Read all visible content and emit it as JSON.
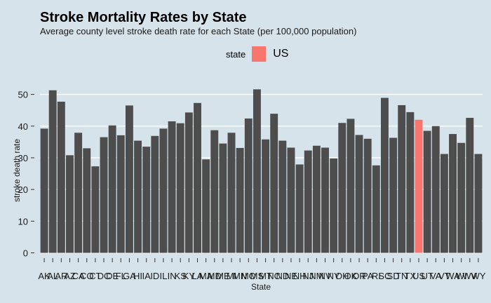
{
  "chart_data": {
    "type": "bar",
    "title": "Stroke Mortality Rates by State",
    "subtitle": "Average county level stroke death rate for each State (per 100,000 population)",
    "xlabel": "State",
    "ylabel": "stroke death rate",
    "ylim": [
      0,
      55
    ],
    "yticks": [
      0,
      10,
      20,
      30,
      40,
      50
    ],
    "legend": {
      "title": "state",
      "label": "US",
      "position": "top"
    },
    "colors": {
      "bar": "#4d4d4d",
      "highlight": "#f8766d",
      "grid": "#ffffff",
      "background": "#d6e3ea"
    },
    "highlight": "US",
    "categories": [
      "AK",
      "AL",
      "AR",
      "AZ",
      "CA",
      "CO",
      "CT",
      "DC",
      "DE",
      "FL",
      "GA",
      "HI",
      "IA",
      "ID",
      "IL",
      "IN",
      "KS",
      "KY",
      "LA",
      "MA",
      "MD",
      "ME",
      "MI",
      "MN",
      "MO",
      "MS",
      "MT",
      "NC",
      "ND",
      "NE",
      "NH",
      "NJ",
      "NM",
      "NV",
      "NY",
      "OH",
      "OK",
      "OR",
      "PA",
      "RI",
      "SC",
      "SD",
      "TN",
      "TX",
      "US",
      "UT",
      "VA",
      "VT",
      "WA",
      "WI",
      "WV",
      "WY"
    ],
    "values": [
      39.2,
      51.3,
      47.7,
      30.8,
      37.9,
      33.0,
      27.3,
      36.5,
      40.2,
      37.1,
      46.5,
      35.4,
      33.5,
      36.9,
      39.2,
      41.5,
      40.9,
      44.3,
      47.3,
      29.5,
      38.7,
      34.5,
      37.9,
      33.1,
      42.4,
      51.6,
      35.8,
      43.9,
      35.4,
      33.2,
      27.9,
      32.3,
      33.8,
      33.2,
      29.8,
      41.0,
      42.3,
      37.2,
      36.0,
      27.6,
      48.9,
      36.3,
      46.6,
      44.4,
      42.0,
      38.5,
      40.0,
      31.2,
      37.5,
      34.7,
      42.6,
      31.2
    ]
  }
}
